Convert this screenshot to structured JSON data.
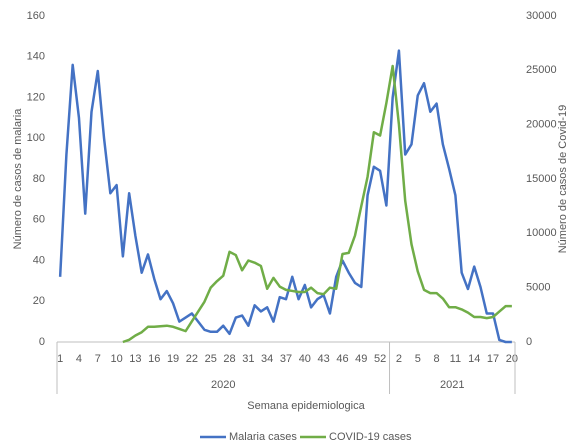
{
  "chart_data": {
    "type": "line",
    "x_label": "Semana epidemiologica",
    "y_label": "Número de casos de malaria",
    "y2_label": "Número de casos de Covid-19",
    "categories": [
      "1",
      null,
      null,
      "4",
      null,
      null,
      "7",
      null,
      null,
      "10",
      null,
      null,
      "13",
      null,
      null,
      "16",
      null,
      null,
      "19",
      null,
      null,
      "22",
      null,
      null,
      "25",
      null,
      null,
      "28",
      null,
      null,
      "31",
      null,
      null,
      "34",
      null,
      null,
      "37",
      null,
      null,
      "40",
      null,
      null,
      "43",
      null,
      null,
      "46",
      null,
      null,
      "49",
      null,
      null,
      "52",
      null,
      null,
      "2",
      null,
      null,
      "5",
      null,
      null,
      "8",
      null,
      null,
      "11",
      null,
      null,
      "14",
      null,
      null,
      "17",
      null,
      null,
      "20"
    ],
    "category_groups": [
      {
        "name": "2020",
        "size": 53
      },
      {
        "name": "2021",
        "size": 20
      }
    ],
    "ylim": [
      0,
      160
    ],
    "yticks": [
      0,
      20,
      40,
      60,
      80,
      100,
      120,
      140,
      160
    ],
    "y2lim": [
      0,
      30000
    ],
    "y2ticks": [
      0,
      5000,
      10000,
      15000,
      20000,
      25000,
      30000
    ],
    "grid": false,
    "series": [
      {
        "name": "Malaria cases",
        "color": "#4472c4",
        "values": [
          32,
          92,
          136,
          110,
          63,
          113,
          133,
          100,
          73,
          77,
          42,
          73,
          52,
          34,
          43,
          31,
          21,
          25,
          19,
          10,
          12,
          14,
          10,
          6,
          5,
          5,
          8,
          4,
          12,
          13,
          8,
          18,
          15,
          17,
          10,
          22,
          21,
          32,
          21,
          28,
          17,
          21,
          23,
          14,
          32,
          40,
          34,
          29,
          27,
          72,
          86,
          84,
          67,
          120,
          143,
          92,
          97,
          121,
          127,
          113,
          117,
          97,
          85,
          72,
          34,
          26,
          37,
          27,
          14,
          14,
          1,
          0,
          0
        ]
      },
      {
        "name": "COVID-19 cases",
        "color": "#70ad47",
        "axis": "y2",
        "values": [
          null,
          null,
          null,
          null,
          null,
          null,
          null,
          null,
          null,
          null,
          0,
          200,
          600,
          900,
          1400,
          1400,
          1450,
          1500,
          1400,
          1200,
          1000,
          1900,
          2800,
          3700,
          5000,
          5600,
          6100,
          8300,
          8000,
          6600,
          7500,
          7300,
          7000,
          4900,
          5900,
          5100,
          4800,
          4700,
          4600,
          4600,
          5000,
          4500,
          4400,
          5000,
          4900,
          8100,
          8200,
          9800,
          12500,
          15200,
          19300,
          19000,
          22000,
          25400,
          20000,
          13000,
          9000,
          6500,
          4800,
          4500,
          4500,
          4000,
          3200,
          3200,
          3000,
          2700,
          2300,
          2300,
          2200,
          2300,
          2800,
          3300,
          3300
        ]
      }
    ]
  }
}
